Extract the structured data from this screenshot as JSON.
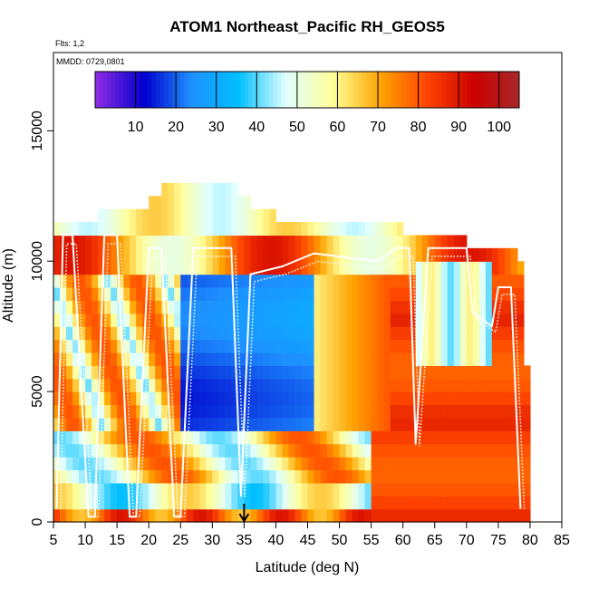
{
  "chart_data": {
    "type": "heatmap",
    "title": "ATOM1 Northeast_Pacific RH_GEOS5",
    "annotations": [
      "Flts: 1,2",
      "MMDD: 0729,0801"
    ],
    "xlabel": "Latitude (deg N)",
    "ylabel": "Altitude (m)",
    "xlim": [
      5,
      85
    ],
    "ylim": [
      0,
      18000
    ],
    "x_ticks": [
      5,
      10,
      15,
      20,
      25,
      30,
      35,
      40,
      45,
      50,
      55,
      60,
      65,
      70,
      75,
      80,
      85
    ],
    "y_ticks": [
      0,
      5000,
      10000,
      15000
    ],
    "colorbar": {
      "min": 0,
      "max": 105,
      "ticks": [
        10,
        20,
        30,
        40,
        50,
        60,
        70,
        80,
        90,
        100
      ],
      "colors": [
        "#8a2be2",
        "#0000cd",
        "#1e90ff",
        "#00bfff",
        "#e0ffff",
        "#ffff99",
        "#ffa500",
        "#ff4500",
        "#cc0000",
        "#a52a2a"
      ]
    },
    "arrow_marker_x": 35,
    "data_extent": {
      "lat_range": [
        5,
        80
      ],
      "alt_ceiling_m": [
        {
          "lat": 5,
          "alt": 7000
        },
        {
          "lat": 6,
          "alt": 11500
        },
        {
          "lat": 12,
          "alt": 11500
        },
        {
          "lat": 14,
          "alt": 12000
        },
        {
          "lat": 20,
          "alt": 12000
        },
        {
          "lat": 22,
          "alt": 12500
        },
        {
          "lat": 26,
          "alt": 13000
        },
        {
          "lat": 32,
          "alt": 13000
        },
        {
          "lat": 34,
          "alt": 12500
        },
        {
          "lat": 36,
          "alt": 12000
        },
        {
          "lat": 40,
          "alt": 11500
        },
        {
          "lat": 55,
          "alt": 11500
        },
        {
          "lat": 60,
          "alt": 11000
        },
        {
          "lat": 70,
          "alt": 10500
        },
        {
          "lat": 78,
          "alt": 10000
        },
        {
          "lat": 79,
          "alt": 6000
        },
        {
          "lat": 80,
          "alt": 6000
        }
      ]
    },
    "flight_track": [
      {
        "lat": 5.5,
        "alt": 500
      },
      {
        "lat": 6.5,
        "alt": 11000
      },
      {
        "lat": 8,
        "alt": 11000
      },
      {
        "lat": 10.5,
        "alt": 200
      },
      {
        "lat": 11.5,
        "alt": 200
      },
      {
        "lat": 13,
        "alt": 11000
      },
      {
        "lat": 15,
        "alt": 11000
      },
      {
        "lat": 17,
        "alt": 200
      },
      {
        "lat": 18,
        "alt": 200
      },
      {
        "lat": 20,
        "alt": 10500
      },
      {
        "lat": 22,
        "alt": 10500
      },
      {
        "lat": 24,
        "alt": 200
      },
      {
        "lat": 25,
        "alt": 200
      },
      {
        "lat": 27,
        "alt": 10500
      },
      {
        "lat": 33,
        "alt": 10500
      },
      {
        "lat": 34.5,
        "alt": 1000
      },
      {
        "lat": 36,
        "alt": 9500
      },
      {
        "lat": 41,
        "alt": 9800
      },
      {
        "lat": 46,
        "alt": 10300
      },
      {
        "lat": 56,
        "alt": 10000
      },
      {
        "lat": 59,
        "alt": 10500
      },
      {
        "lat": 61,
        "alt": 10500
      },
      {
        "lat": 62,
        "alt": 3000
      },
      {
        "lat": 64,
        "alt": 10500
      },
      {
        "lat": 70,
        "alt": 10500
      },
      {
        "lat": 71,
        "alt": 8000
      },
      {
        "lat": 74,
        "alt": 7500
      },
      {
        "lat": 75,
        "alt": 9000
      },
      {
        "lat": 77,
        "alt": 9000
      },
      {
        "lat": 78.5,
        "alt": 500
      }
    ]
  }
}
